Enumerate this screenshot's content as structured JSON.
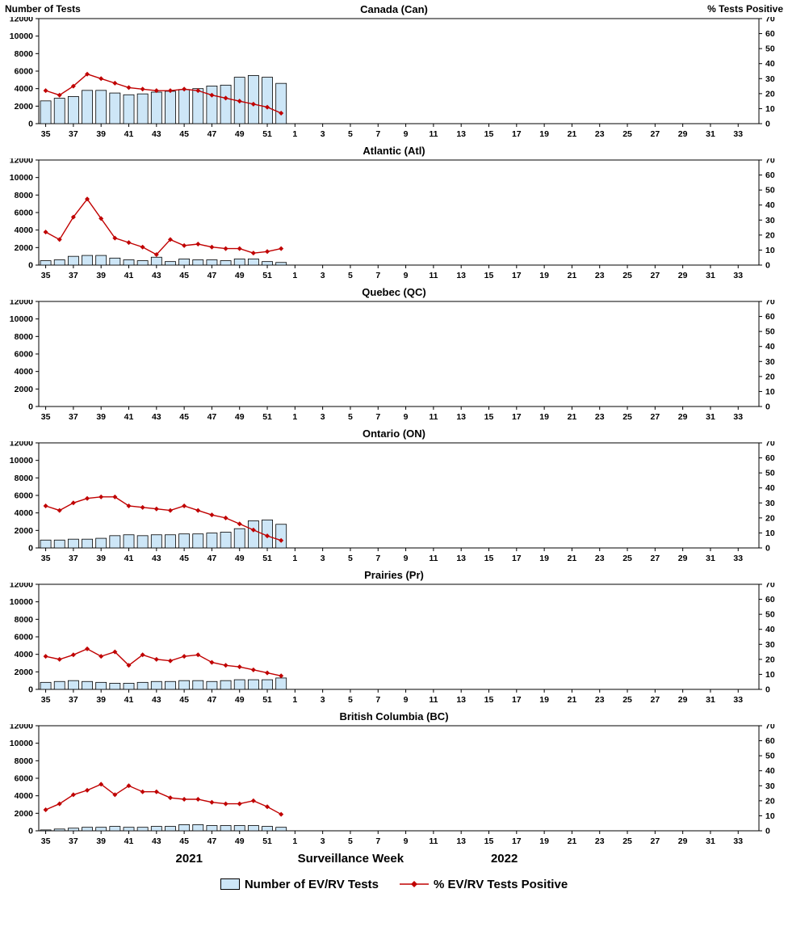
{
  "header": {
    "left_axis_title": "Number of Tests",
    "right_axis_title": "% Tests Positive"
  },
  "footer": {
    "year_left": "2021",
    "xlabel": "Surveillance Week",
    "year_right": "2022"
  },
  "legend": {
    "tests_label": "Number of EV/RV Tests",
    "pct_label": "% EV/RV Tests Positive"
  },
  "colors": {
    "bar_fill": "#CDE6F7",
    "bar_stroke": "#000000",
    "line": "#C00000"
  },
  "axes": {
    "weeks": [
      35,
      36,
      37,
      38,
      39,
      40,
      41,
      42,
      43,
      44,
      45,
      46,
      47,
      48,
      49,
      50,
      51,
      52,
      1,
      2,
      3,
      4,
      5,
      6,
      7,
      8,
      9,
      10,
      11,
      12,
      13,
      14,
      15,
      16,
      17,
      18,
      19,
      20,
      21,
      22,
      23,
      24,
      25,
      26,
      27,
      28,
      29,
      30,
      31,
      32,
      33,
      34
    ],
    "x_tick_labels": [
      35,
      37,
      39,
      41,
      43,
      45,
      47,
      49,
      51,
      1,
      3,
      5,
      7,
      9,
      11,
      13,
      15,
      17,
      19,
      21,
      23,
      25,
      27,
      29,
      31,
      33
    ],
    "left_ticks": [
      0,
      2000,
      4000,
      6000,
      8000,
      10000,
      12000
    ],
    "right_ticks": [
      0,
      10,
      20,
      30,
      40,
      50,
      60,
      70
    ],
    "left_max": 12000,
    "right_max": 70,
    "ylabel_left": "Number of Tests",
    "ylabel_right": "% Tests Positive",
    "xlabel": "Surveillance Week"
  },
  "chart_data": [
    {
      "type": "bar+line",
      "title": "Canada (Can)",
      "data_weeks_2021": [
        35,
        36,
        37,
        38,
        39,
        40,
        41,
        42,
        43,
        44,
        45,
        46,
        47,
        48,
        49,
        50,
        51,
        52
      ],
      "tests": [
        2600,
        2900,
        3100,
        3800,
        3800,
        3500,
        3300,
        3400,
        3600,
        3700,
        3900,
        4000,
        4300,
        4400,
        5300,
        5500,
        5300,
        4600
      ],
      "pct_positive": [
        22,
        19,
        25,
        33,
        30,
        27,
        24,
        23,
        22,
        22,
        23,
        22,
        19,
        17,
        15,
        13,
        11,
        7
      ]
    },
    {
      "type": "bar+line",
      "title": "Atlantic (Atl)",
      "data_weeks_2021": [
        35,
        36,
        37,
        38,
        39,
        40,
        41,
        42,
        43,
        44,
        45,
        46,
        47,
        48,
        49,
        50,
        51,
        52
      ],
      "tests": [
        500,
        600,
        1000,
        1100,
        1100,
        800,
        600,
        500,
        900,
        400,
        700,
        600,
        600,
        500,
        700,
        700,
        400,
        300
      ],
      "pct_positive": [
        22,
        17,
        32,
        44,
        31,
        18,
        15,
        12,
        7,
        17,
        13,
        14,
        12,
        11,
        11,
        8,
        9,
        11
      ]
    },
    {
      "type": "bar+line",
      "title": "Quebec (QC)",
      "data_weeks_2021": [],
      "tests": [],
      "pct_positive": []
    },
    {
      "type": "bar+line",
      "title": "Ontario (ON)",
      "data_weeks_2021": [
        35,
        36,
        37,
        38,
        39,
        40,
        41,
        42,
        43,
        44,
        45,
        46,
        47,
        48,
        49,
        50,
        51,
        52
      ],
      "tests": [
        900,
        900,
        1000,
        1000,
        1100,
        1400,
        1500,
        1400,
        1500,
        1500,
        1600,
        1600,
        1700,
        1800,
        2200,
        3100,
        3200,
        2700
      ],
      "pct_positive": [
        28,
        25,
        30,
        33,
        34,
        34,
        28,
        27,
        26,
        25,
        28,
        25,
        22,
        20,
        16,
        12,
        8,
        5
      ]
    },
    {
      "type": "bar+line",
      "title": "Prairies (Pr)",
      "data_weeks_2021": [
        35,
        36,
        37,
        38,
        39,
        40,
        41,
        42,
        43,
        44,
        45,
        46,
        47,
        48,
        49,
        50,
        51,
        52
      ],
      "tests": [
        800,
        900,
        1000,
        900,
        800,
        700,
        700,
        800,
        900,
        900,
        1000,
        1000,
        900,
        1000,
        1100,
        1100,
        1100,
        1300
      ],
      "pct_positive": [
        22,
        20,
        23,
        27,
        22,
        25,
        16,
        23,
        20,
        19,
        22,
        23,
        18,
        16,
        15,
        13,
        11,
        9
      ]
    },
    {
      "type": "bar+line",
      "title": "British Columbia (BC)",
      "data_weeks_2021": [
        35,
        36,
        37,
        38,
        39,
        40,
        41,
        42,
        43,
        44,
        45,
        46,
        47,
        48,
        49,
        50,
        51,
        52
      ],
      "tests": [
        100,
        200,
        300,
        400,
        400,
        500,
        400,
        400,
        500,
        500,
        700,
        700,
        600,
        600,
        600,
        600,
        500,
        400
      ],
      "pct_positive": [
        14,
        18,
        24,
        27,
        31,
        24,
        30,
        26,
        26,
        22,
        21,
        21,
        19,
        18,
        18,
        20,
        16,
        11
      ]
    }
  ]
}
